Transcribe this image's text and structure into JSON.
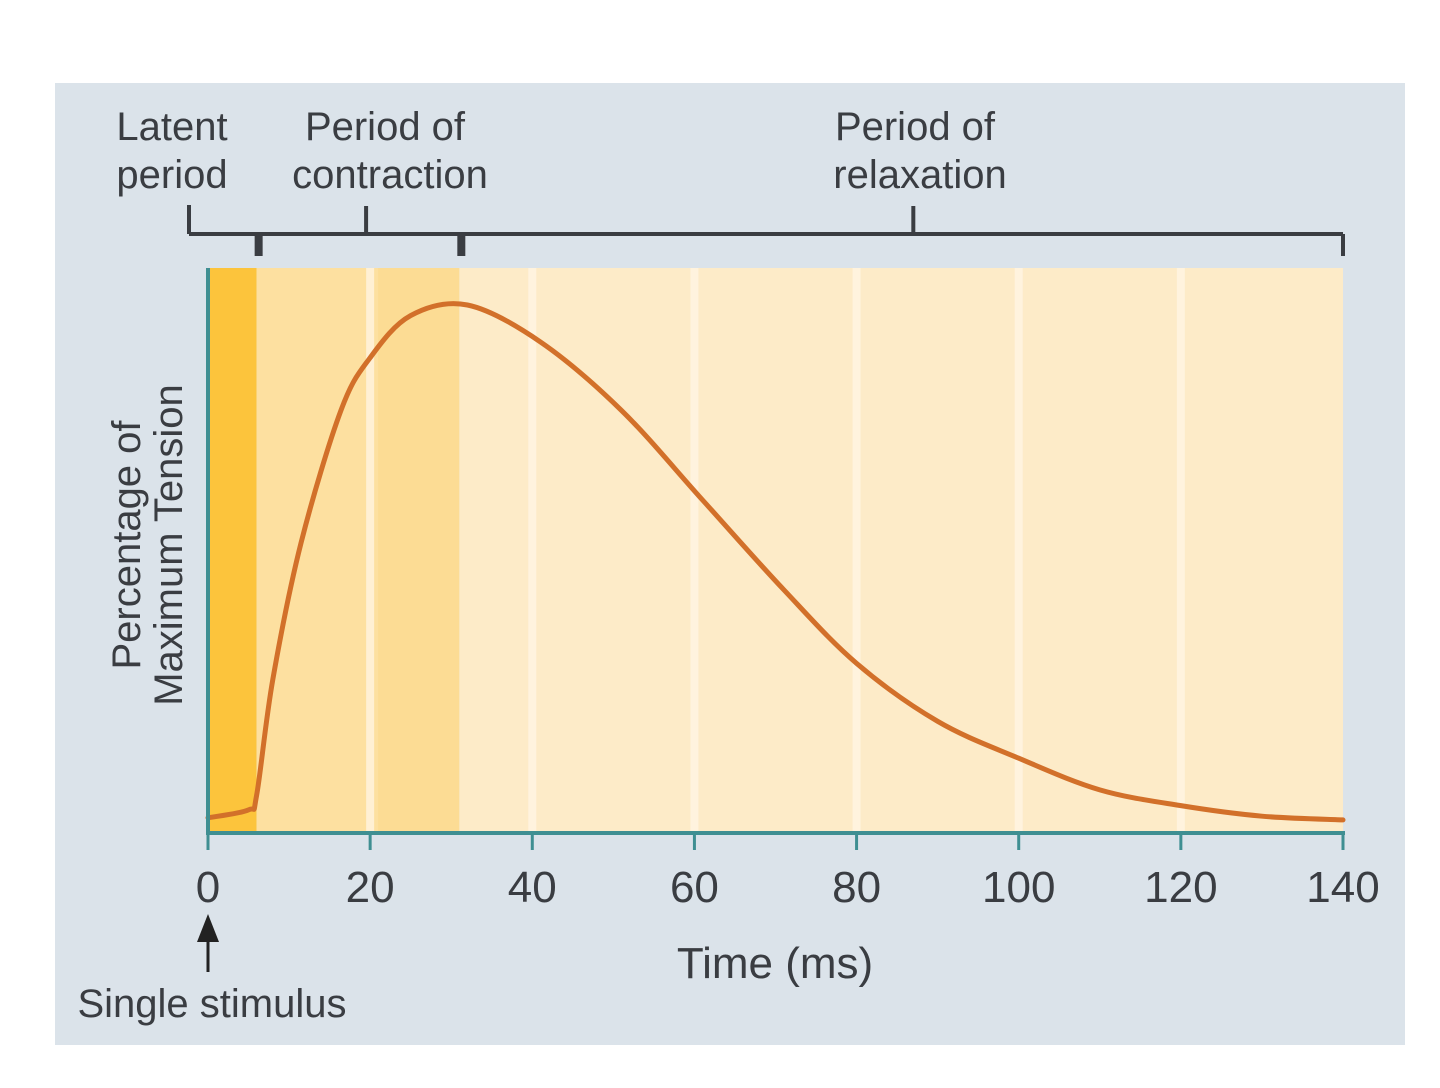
{
  "chart_data": {
    "type": "line",
    "title": "",
    "xlabel": "Time (ms)",
    "ylabel_lines": [
      "Percentage of",
      "Maximum Tension"
    ],
    "xlim": [
      0,
      140
    ],
    "ylim": [
      0,
      100
    ],
    "x_ticks": [
      0,
      20,
      40,
      60,
      80,
      100,
      120,
      140
    ],
    "grid": false,
    "legend": "none",
    "series": [
      {
        "x": [
          0,
          5,
          6,
          8,
          11.5,
          16.4,
          20,
          25,
          32,
          41,
          51,
          61,
          71,
          80,
          90,
          100,
          110,
          120,
          130,
          140
        ],
        "y": [
          2.7,
          4.2,
          7,
          29,
          55,
          80,
          90,
          98,
          100,
          93,
          80,
          63,
          46,
          32,
          21,
          14,
          8,
          5,
          3,
          2.3
        ]
      }
    ],
    "phases": [
      {
        "label_lines": [
          "Latent",
          "period"
        ],
        "start": 0,
        "end": 6,
        "color": "#fcc43c"
      },
      {
        "label_lines": [
          "Period of",
          "contraction"
        ],
        "start": 6,
        "end": 31,
        "color": "#fde0a0"
      },
      {
        "label_lines": [
          "Period of",
          "relaxation"
        ],
        "start": 31,
        "end": 140,
        "color": "#fdebc8"
      }
    ],
    "annotation": "Single stimulus",
    "colors": {
      "curve": "#d2702a",
      "axis": "#3f8f92",
      "panel": "#dbe3ea",
      "bracket": "#3a3d42"
    }
  }
}
